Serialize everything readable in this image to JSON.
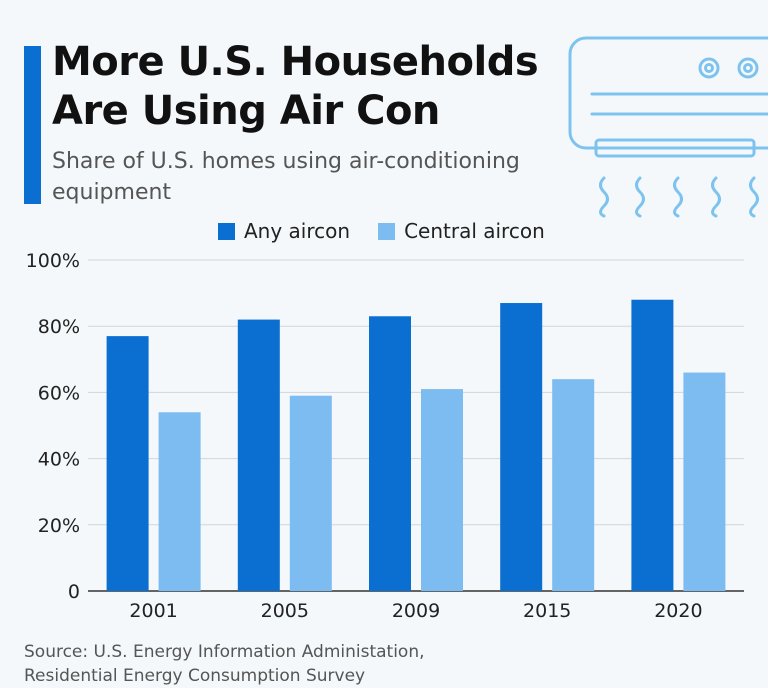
{
  "header": {
    "title_line1": "More U.S. Households",
    "title_line2": "Are Using Air Con",
    "subtitle": "Share of U.S. homes using air-conditioning equipment"
  },
  "illustration": {
    "icon": "air-conditioner-icon"
  },
  "colors": {
    "accent": "#0a6fd1",
    "any_aircon": "#0a6fd1",
    "central_aircon": "#7dbcf0",
    "background": "#f4f8fb",
    "illustration": "#7ec3ef"
  },
  "chart_data": {
    "type": "bar",
    "categories": [
      "2001",
      "2005",
      "2009",
      "2015",
      "2020"
    ],
    "series": [
      {
        "name": "Any aircon",
        "values": [
          77,
          82,
          83,
          87,
          88
        ]
      },
      {
        "name": "Central aircon",
        "values": [
          54,
          59,
          61,
          64,
          66
        ]
      }
    ],
    "ylim": [
      0,
      100
    ],
    "yticks": [
      0,
      20,
      40,
      60,
      80,
      100
    ],
    "ytick_labels": [
      "0",
      "20%",
      "40%",
      "60%",
      "80%",
      "100%"
    ],
    "grid": true,
    "legend_position": "top-center"
  },
  "footer": {
    "source_line1": "Source: U.S. Energy Information Administation,",
    "source_line2": "Residential Energy Consumption Survey"
  }
}
